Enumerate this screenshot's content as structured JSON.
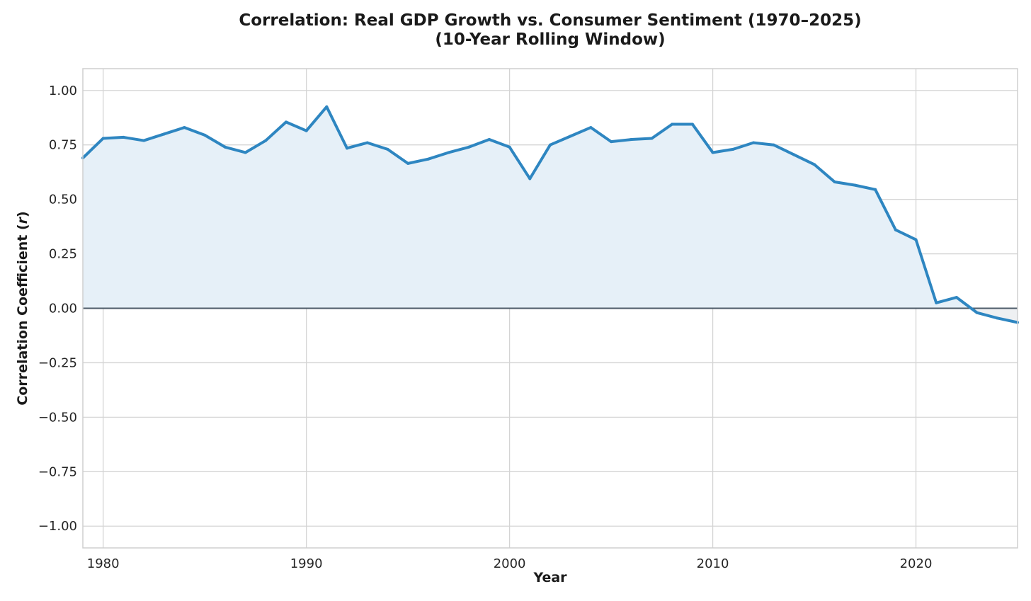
{
  "chart_data": {
    "type": "area",
    "title_lines": [
      "Correlation: Real GDP Growth vs. Consumer Sentiment (1970–2025)",
      "(10-Year Rolling Window)"
    ],
    "xlabel": "Year",
    "ylabel": "Correlation Coefficient (r)",
    "xlim": [
      1979,
      2025
    ],
    "ylim": [
      -1.1,
      1.1
    ],
    "xticks": [
      1980,
      1990,
      2000,
      2010,
      2020
    ],
    "xtick_labels": [
      "1980",
      "1990",
      "2000",
      "2010",
      "2020"
    ],
    "yticks": [
      1.0,
      0.75,
      0.5,
      0.25,
      0.0,
      -0.25,
      -0.5,
      -0.75,
      -1.0
    ],
    "ytick_labels": [
      "1.00",
      "0.75",
      "0.50",
      "0.25",
      "0.00",
      "−0.25",
      "−0.50",
      "−0.75",
      "−1.00"
    ],
    "grid": true,
    "zero_line": true,
    "series": [
      {
        "x": [
          1979,
          1980,
          1981,
          1982,
          1983,
          1984,
          1985,
          1986,
          1987,
          1988,
          1989,
          1990,
          1991,
          1992,
          1993,
          1994,
          1995,
          1996,
          1997,
          1998,
          1999,
          2000,
          2001,
          2002,
          2003,
          2004,
          2005,
          2006,
          2007,
          2008,
          2009,
          2010,
          2011,
          2012,
          2013,
          2014,
          2015,
          2016,
          2017,
          2018,
          2019,
          2020,
          2021,
          2022,
          2023,
          2024,
          2025
        ],
        "values": [
          0.69,
          0.78,
          0.785,
          0.77,
          0.8,
          0.83,
          0.795,
          0.74,
          0.715,
          0.77,
          0.855,
          0.815,
          0.925,
          0.735,
          0.76,
          0.73,
          0.665,
          0.685,
          0.715,
          0.74,
          0.775,
          0.74,
          0.595,
          0.75,
          0.79,
          0.83,
          0.765,
          0.775,
          0.78,
          0.845,
          0.845,
          0.715,
          0.73,
          0.76,
          0.75,
          0.705,
          0.66,
          0.58,
          0.565,
          0.545,
          0.36,
          0.315,
          0.025,
          0.05,
          -0.02,
          -0.045,
          -0.065
        ]
      }
    ],
    "colors": {
      "line": "#2e86c1",
      "fill_positive": "#e6f0f8",
      "fill_negative": "#eef0f2",
      "zero_line": "#4d5b69",
      "grid": "#d4d4d4",
      "frame": "#cfcfcf"
    }
  }
}
